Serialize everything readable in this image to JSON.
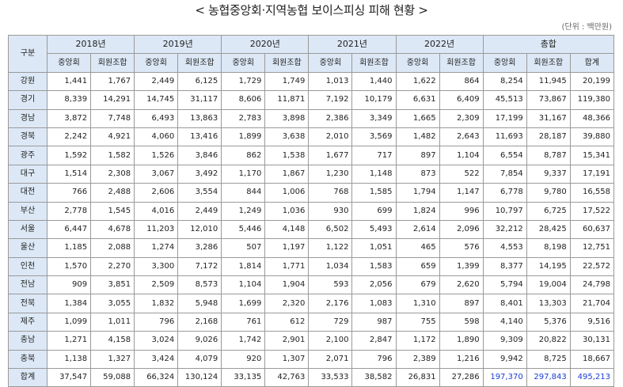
{
  "title": "< 농협중앙회·지역농협 보이스피싱 피해 현황 >",
  "unit": "(단위 : 백만원)",
  "header": {
    "region": "구분",
    "years": [
      "2018년",
      "2019년",
      "2020년",
      "2021년",
      "2022년"
    ],
    "total": "총합",
    "sub_central": "중앙회",
    "sub_member": "회원조합",
    "sub_sum": "합계"
  },
  "rows": [
    {
      "region": "강원",
      "values": [
        "1,441",
        "1,767",
        "2,449",
        "6,125",
        "1,729",
        "1,749",
        "1,013",
        "1,440",
        "1,622",
        "864",
        "8,254",
        "11,945",
        "20,199"
      ]
    },
    {
      "region": "경기",
      "values": [
        "8,339",
        "14,291",
        "14,745",
        "31,117",
        "8,606",
        "11,871",
        "7,192",
        "10,179",
        "6,631",
        "6,409",
        "45,513",
        "73,867",
        "119,380"
      ]
    },
    {
      "region": "경남",
      "values": [
        "3,872",
        "7,748",
        "6,493",
        "13,863",
        "2,783",
        "3,898",
        "2,386",
        "3,349",
        "1,665",
        "2,309",
        "17,199",
        "31,167",
        "48,366"
      ]
    },
    {
      "region": "경북",
      "values": [
        "2,242",
        "4,921",
        "4,060",
        "13,416",
        "1,899",
        "3,638",
        "2,010",
        "3,569",
        "1,482",
        "2,643",
        "11,693",
        "28,187",
        "39,880"
      ]
    },
    {
      "region": "광주",
      "values": [
        "1,592",
        "1,582",
        "1,526",
        "3,846",
        "862",
        "1,538",
        "1,677",
        "717",
        "897",
        "1,104",
        "6,554",
        "8,787",
        "15,341"
      ]
    },
    {
      "region": "대구",
      "values": [
        "1,514",
        "2,308",
        "3,067",
        "3,492",
        "1,170",
        "1,867",
        "1,230",
        "1,148",
        "873",
        "522",
        "7,854",
        "9,337",
        "17,191"
      ]
    },
    {
      "region": "대전",
      "values": [
        "766",
        "2,488",
        "2,606",
        "3,554",
        "844",
        "1,006",
        "768",
        "1,585",
        "1,794",
        "1,147",
        "6,778",
        "9,780",
        "16,558"
      ]
    },
    {
      "region": "부산",
      "values": [
        "2,778",
        "1,545",
        "4,016",
        "2,449",
        "1,249",
        "1,036",
        "930",
        "699",
        "1,824",
        "996",
        "10,797",
        "6,725",
        "17,522"
      ]
    },
    {
      "region": "서울",
      "values": [
        "6,447",
        "4,678",
        "11,203",
        "12,010",
        "5,446",
        "4,148",
        "6,502",
        "5,493",
        "2,614",
        "2,096",
        "32,212",
        "28,425",
        "60,637"
      ]
    },
    {
      "region": "울산",
      "values": [
        "1,185",
        "2,088",
        "1,274",
        "3,286",
        "507",
        "1,197",
        "1,122",
        "1,051",
        "465",
        "576",
        "4,553",
        "8,198",
        "12,751"
      ]
    },
    {
      "region": "인천",
      "values": [
        "1,570",
        "2,270",
        "3,300",
        "7,172",
        "1,814",
        "1,771",
        "1,034",
        "1,583",
        "659",
        "1,399",
        "8,377",
        "14,195",
        "22,572"
      ]
    },
    {
      "region": "전남",
      "values": [
        "909",
        "3,851",
        "2,509",
        "8,573",
        "1,104",
        "1,904",
        "593",
        "2,056",
        "679",
        "2,620",
        "5,794",
        "19,004",
        "24,798"
      ]
    },
    {
      "region": "전북",
      "values": [
        "1,384",
        "3,055",
        "1,832",
        "5,948",
        "1,699",
        "2,320",
        "2,176",
        "1,083",
        "1,310",
        "897",
        "8,401",
        "13,303",
        "21,704"
      ]
    },
    {
      "region": "제주",
      "values": [
        "1,099",
        "1,011",
        "796",
        "2,168",
        "761",
        "612",
        "729",
        "987",
        "755",
        "598",
        "4,140",
        "5,376",
        "9,516"
      ]
    },
    {
      "region": "충남",
      "values": [
        "1,271",
        "4,158",
        "3,024",
        "9,026",
        "1,742",
        "2,901",
        "2,100",
        "2,847",
        "1,172",
        "1,890",
        "9,309",
        "20,822",
        "30,131"
      ]
    },
    {
      "region": "충북",
      "values": [
        "1,138",
        "1,327",
        "3,424",
        "4,079",
        "920",
        "1,307",
        "2,071",
        "796",
        "2,389",
        "1,216",
        "9,942",
        "8,725",
        "18,667"
      ]
    }
  ],
  "total_row": {
    "region": "합계",
    "values": [
      "37,547",
      "59,088",
      "66,324",
      "130,124",
      "33,135",
      "42,763",
      "33,533",
      "38,582",
      "26,831",
      "27,286",
      "197,370",
      "297,843",
      "495,213"
    ],
    "highlight_color": "#1a3cd0"
  }
}
